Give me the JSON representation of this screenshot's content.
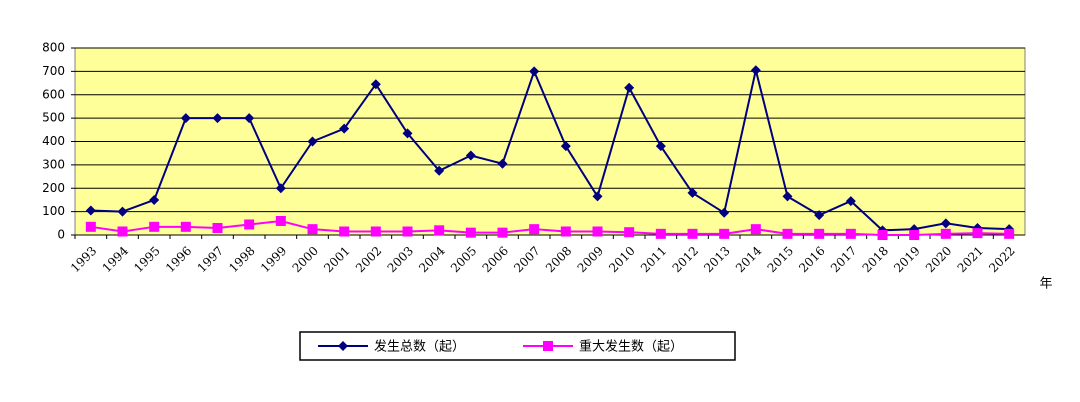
{
  "chart_data": {
    "type": "line",
    "x_label": "年",
    "categories": [
      "1993",
      "1994",
      "1995",
      "1996",
      "1997",
      "1998",
      "1999",
      "2000",
      "2001",
      "2002",
      "2003",
      "2004",
      "2005",
      "2006",
      "2007",
      "2008",
      "2009",
      "2010",
      "2011",
      "2012",
      "2013",
      "2014",
      "2015",
      "2016",
      "2017",
      "2018",
      "2019",
      "2020",
      "2021",
      "2022"
    ],
    "series": [
      {
        "name": "发生总数（起）",
        "color": "#000080",
        "marker": "diamond",
        "values": [
          105,
          100,
          150,
          500,
          500,
          500,
          200,
          400,
          455,
          645,
          435,
          275,
          340,
          305,
          700,
          380,
          165,
          630,
          380,
          180,
          95,
          705,
          165,
          85,
          145,
          20,
          25,
          50,
          30,
          25
        ]
      },
      {
        "name": "重大发生数（起）",
        "color": "#ff00ff",
        "marker": "square",
        "values": [
          35,
          15,
          35,
          35,
          30,
          45,
          60,
          25,
          15,
          15,
          15,
          20,
          10,
          10,
          25,
          15,
          15,
          12,
          5,
          5,
          5,
          25,
          5,
          5,
          5,
          0,
          0,
          5,
          8,
          5
        ]
      }
    ],
    "ylim": [
      0,
      800
    ],
    "yticks": [
      0,
      100,
      200,
      300,
      400,
      500,
      600,
      700,
      800
    ],
    "grid": true,
    "background": "#ffff99"
  }
}
